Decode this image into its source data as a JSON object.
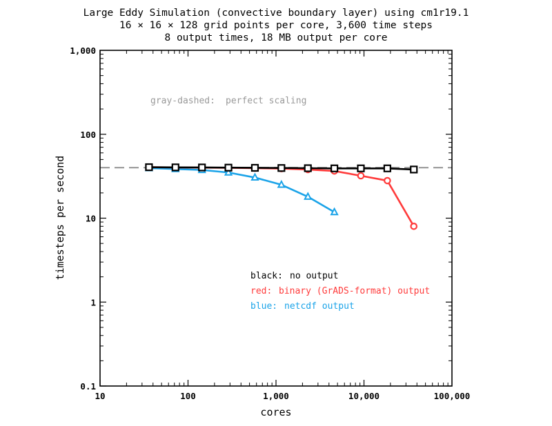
{
  "chart_data": {
    "type": "line",
    "title": [
      "Large Eddy Simulation (convective boundary layer) using cm1r19.1",
      "16 × 16 × 128 grid points per core, 3,600 time steps",
      "8 output times, 18 MB output per core"
    ],
    "xlabel": "cores",
    "ylabel": "timesteps per second",
    "xscale": "log",
    "yscale": "log",
    "xlim": [
      10,
      100000
    ],
    "ylim": [
      0.1,
      1000
    ],
    "xticks": [
      {
        "value": 10,
        "label": "10"
      },
      {
        "value": 100,
        "label": "100"
      },
      {
        "value": 1000,
        "label": "1,000"
      },
      {
        "value": 10000,
        "label": "10,000"
      },
      {
        "value": 100000,
        "label": "100,000"
      }
    ],
    "yticks": [
      {
        "value": 0.1,
        "label": "0.1"
      },
      {
        "value": 1,
        "label": "1"
      },
      {
        "value": 10,
        "label": "10"
      },
      {
        "value": 100,
        "label": "100"
      },
      {
        "value": 1000,
        "label": "1,000"
      }
    ],
    "reference": {
      "name": "perfect scaling",
      "value": 40,
      "color": "#999999"
    },
    "series": [
      {
        "name": "no output",
        "color": "#000000",
        "marker": "square",
        "x": [
          36,
          72,
          144,
          288,
          576,
          1152,
          2304,
          4608,
          9216,
          18432,
          36864
        ],
        "y": [
          40.5,
          40.3,
          40.2,
          40.0,
          39.8,
          39.6,
          39.4,
          39.2,
          39.2,
          39.2,
          38.0
        ]
      },
      {
        "name": "binary (GrADS-format) output",
        "color": "#ff3b3b",
        "marker": "circle",
        "x": [
          36,
          72,
          144,
          288,
          576,
          1152,
          2304,
          4608,
          9216,
          18432,
          36864
        ],
        "y": [
          40.5,
          40.2,
          40.0,
          39.8,
          39.4,
          39.0,
          38.0,
          36.5,
          32.0,
          28.0,
          8.0
        ]
      },
      {
        "name": "netcdf output",
        "color": "#1aa3e8",
        "marker": "triangle",
        "x": [
          36,
          72,
          144,
          288,
          576,
          1152,
          2304,
          4608
        ],
        "y": [
          39.5,
          38.5,
          37.5,
          35.0,
          30.5,
          25.0,
          18.0,
          11.8
        ]
      }
    ],
    "annotations": [
      {
        "key": "gray-dashed:",
        "text": "perfect scaling",
        "color": "#999999"
      },
      {
        "key": "black:",
        "text": "no output",
        "color": "#000000"
      },
      {
        "key": "red:",
        "text": "binary (GrADS-format) output",
        "color": "#ff3b3b"
      },
      {
        "key": "blue:",
        "text": "netcdf output",
        "color": "#1aa3e8"
      }
    ]
  }
}
